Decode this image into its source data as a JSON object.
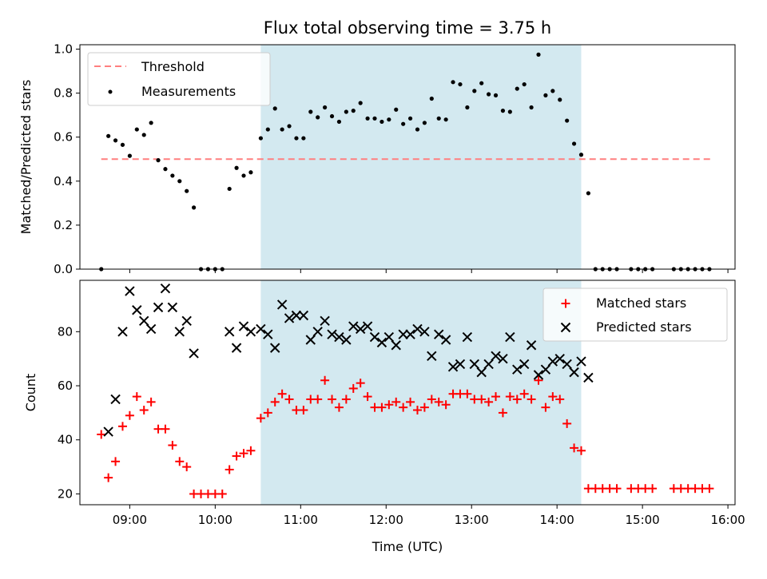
{
  "chart_data": [
    {
      "type": "scatter",
      "title": "Flux total observing time = 3.75 h",
      "xlabel": "",
      "ylabel": "Matched/Predicted stars",
      "xlim": [
        "08:25",
        "16:05"
      ],
      "ylim": [
        0,
        1.02
      ],
      "yticks": [
        "0.0",
        "0.2",
        "0.4",
        "0.6",
        "0.8",
        "1.0"
      ],
      "shaded_interval": [
        "10:32",
        "14:17"
      ],
      "shade_color": "#d3e9f0",
      "legend_position": "upper left",
      "series": [
        {
          "name": "Threshold",
          "kind": "dashed-line",
          "color": "#ff7f7f",
          "points": [
            [
              "08:40",
              0.5
            ],
            [
              "15:50",
              0.5
            ]
          ]
        },
        {
          "name": "Measurements",
          "kind": "dot",
          "color": "#000000",
          "points": [
            [
              "08:40",
              0.0
            ],
            [
              "08:45",
              0.605
            ],
            [
              "08:50",
              0.585
            ],
            [
              "08:55",
              0.565
            ],
            [
              "09:00",
              0.515
            ],
            [
              "09:05",
              0.635
            ],
            [
              "09:10",
              0.61
            ],
            [
              "09:15",
              0.665
            ],
            [
              "09:20",
              0.495
            ],
            [
              "09:25",
              0.455
            ],
            [
              "09:30",
              0.425
            ],
            [
              "09:35",
              0.4
            ],
            [
              "09:40",
              0.355
            ],
            [
              "09:45",
              0.28
            ],
            [
              "09:50",
              0.0
            ],
            [
              "09:55",
              0.0
            ],
            [
              "10:00",
              0.0
            ],
            [
              "10:05",
              0.0
            ],
            [
              "10:10",
              0.365
            ],
            [
              "10:15",
              0.46
            ],
            [
              "10:20",
              0.425
            ],
            [
              "10:25",
              0.44
            ],
            [
              "10:32",
              0.595
            ],
            [
              "10:37",
              0.635
            ],
            [
              "10:42",
              0.73
            ],
            [
              "10:47",
              0.635
            ],
            [
              "10:52",
              0.65
            ],
            [
              "10:57",
              0.595
            ],
            [
              "11:02",
              0.595
            ],
            [
              "11:07",
              0.715
            ],
            [
              "11:12",
              0.69
            ],
            [
              "11:17",
              0.735
            ],
            [
              "11:22",
              0.695
            ],
            [
              "11:27",
              0.67
            ],
            [
              "11:32",
              0.715
            ],
            [
              "11:37",
              0.72
            ],
            [
              "11:42",
              0.755
            ],
            [
              "11:47",
              0.685
            ],
            [
              "11:52",
              0.685
            ],
            [
              "11:57",
              0.67
            ],
            [
              "12:02",
              0.68
            ],
            [
              "12:07",
              0.725
            ],
            [
              "12:12",
              0.66
            ],
            [
              "12:17",
              0.685
            ],
            [
              "12:22",
              0.635
            ],
            [
              "12:27",
              0.665
            ],
            [
              "12:32",
              0.775
            ],
            [
              "12:37",
              0.685
            ],
            [
              "12:42",
              0.68
            ],
            [
              "12:47",
              0.85
            ],
            [
              "12:52",
              0.84
            ],
            [
              "12:57",
              0.735
            ],
            [
              "13:02",
              0.81
            ],
            [
              "13:07",
              0.845
            ],
            [
              "13:12",
              0.795
            ],
            [
              "13:17",
              0.79
            ],
            [
              "13:22",
              0.72
            ],
            [
              "13:27",
              0.715
            ],
            [
              "13:32",
              0.82
            ],
            [
              "13:37",
              0.84
            ],
            [
              "13:42",
              0.735
            ],
            [
              "13:47",
              0.975
            ],
            [
              "13:52",
              0.79
            ],
            [
              "13:57",
              0.81
            ],
            [
              "14:02",
              0.77
            ],
            [
              "14:07",
              0.675
            ],
            [
              "14:12",
              0.57
            ],
            [
              "14:17",
              0.52
            ],
            [
              "14:22",
              0.345
            ],
            [
              "14:27",
              0.0
            ],
            [
              "14:32",
              0.0
            ],
            [
              "14:37",
              0.0
            ],
            [
              "14:42",
              0.0
            ],
            [
              "14:52",
              0.0
            ],
            [
              "14:57",
              0.0
            ],
            [
              "15:02",
              0.0
            ],
            [
              "15:07",
              0.0
            ],
            [
              "15:22",
              0.0
            ],
            [
              "15:27",
              0.0
            ],
            [
              "15:32",
              0.0
            ],
            [
              "15:37",
              0.0
            ],
            [
              "15:42",
              0.0
            ],
            [
              "15:47",
              0.0
            ]
          ]
        }
      ]
    },
    {
      "type": "scatter",
      "title": "",
      "xlabel": "Time (UTC)",
      "ylabel": "Count",
      "xlim": [
        "08:25",
        "16:05"
      ],
      "ylim": [
        16,
        99
      ],
      "yticks": [
        "20",
        "40",
        "60",
        "80"
      ],
      "xticks": [
        "09:00",
        "10:00",
        "11:00",
        "12:00",
        "13:00",
        "14:00",
        "15:00",
        "16:00"
      ],
      "shaded_interval": [
        "10:32",
        "14:17"
      ],
      "shade_color": "#d3e9f0",
      "legend_position": "upper right",
      "series": [
        {
          "name": "Matched stars",
          "kind": "plus",
          "color": "#ff0000",
          "points": [
            [
              "08:40",
              42
            ],
            [
              "08:45",
              26
            ],
            [
              "08:50",
              32
            ],
            [
              "08:55",
              45
            ],
            [
              "09:00",
              49
            ],
            [
              "09:05",
              56
            ],
            [
              "09:10",
              51
            ],
            [
              "09:15",
              54
            ],
            [
              "09:20",
              44
            ],
            [
              "09:25",
              44
            ],
            [
              "09:30",
              38
            ],
            [
              "09:35",
              32
            ],
            [
              "09:40",
              30
            ],
            [
              "09:45",
              20
            ],
            [
              "09:50",
              20
            ],
            [
              "09:55",
              20
            ],
            [
              "10:00",
              20
            ],
            [
              "10:05",
              20
            ],
            [
              "10:10",
              29
            ],
            [
              "10:15",
              34
            ],
            [
              "10:20",
              35
            ],
            [
              "10:25",
              36
            ],
            [
              "10:32",
              48
            ],
            [
              "10:37",
              50
            ],
            [
              "10:42",
              54
            ],
            [
              "10:47",
              57
            ],
            [
              "10:52",
              55
            ],
            [
              "10:57",
              51
            ],
            [
              "11:02",
              51
            ],
            [
              "11:07",
              55
            ],
            [
              "11:12",
              55
            ],
            [
              "11:17",
              62
            ],
            [
              "11:22",
              55
            ],
            [
              "11:27",
              52
            ],
            [
              "11:32",
              55
            ],
            [
              "11:37",
              59
            ],
            [
              "11:42",
              61
            ],
            [
              "11:47",
              56
            ],
            [
              "11:52",
              52
            ],
            [
              "11:57",
              52
            ],
            [
              "12:02",
              53
            ],
            [
              "12:07",
              54
            ],
            [
              "12:12",
              52
            ],
            [
              "12:17",
              54
            ],
            [
              "12:22",
              51
            ],
            [
              "12:27",
              52
            ],
            [
              "12:32",
              55
            ],
            [
              "12:37",
              54
            ],
            [
              "12:42",
              53
            ],
            [
              "12:47",
              57
            ],
            [
              "12:52",
              57
            ],
            [
              "12:57",
              57
            ],
            [
              "13:02",
              55
            ],
            [
              "13:07",
              55
            ],
            [
              "13:12",
              54
            ],
            [
              "13:17",
              56
            ],
            [
              "13:22",
              50
            ],
            [
              "13:27",
              56
            ],
            [
              "13:32",
              55
            ],
            [
              "13:37",
              57
            ],
            [
              "13:42",
              55
            ],
            [
              "13:47",
              62
            ],
            [
              "13:52",
              52
            ],
            [
              "13:57",
              56
            ],
            [
              "14:02",
              55
            ],
            [
              "14:07",
              46
            ],
            [
              "14:12",
              37
            ],
            [
              "14:17",
              36
            ],
            [
              "14:22",
              22
            ],
            [
              "14:27",
              22
            ],
            [
              "14:32",
              22
            ],
            [
              "14:37",
              22
            ],
            [
              "14:42",
              22
            ],
            [
              "14:52",
              22
            ],
            [
              "14:57",
              22
            ],
            [
              "15:02",
              22
            ],
            [
              "15:07",
              22
            ],
            [
              "15:22",
              22
            ],
            [
              "15:27",
              22
            ],
            [
              "15:32",
              22
            ],
            [
              "15:37",
              22
            ],
            [
              "15:42",
              22
            ],
            [
              "15:47",
              22
            ]
          ]
        },
        {
          "name": "Predicted stars",
          "kind": "x",
          "color": "#000000",
          "points": [
            [
              "08:45",
              43
            ],
            [
              "08:50",
              55
            ],
            [
              "08:55",
              80
            ],
            [
              "09:00",
              95
            ],
            [
              "09:05",
              88
            ],
            [
              "09:10",
              84
            ],
            [
              "09:15",
              81
            ],
            [
              "09:20",
              89
            ],
            [
              "09:25",
              96
            ],
            [
              "09:30",
              89
            ],
            [
              "09:35",
              80
            ],
            [
              "09:40",
              84
            ],
            [
              "09:45",
              72
            ],
            [
              "10:10",
              80
            ],
            [
              "10:15",
              74
            ],
            [
              "10:20",
              82
            ],
            [
              "10:25",
              80
            ],
            [
              "10:32",
              81
            ],
            [
              "10:37",
              79
            ],
            [
              "10:42",
              74
            ],
            [
              "10:47",
              90
            ],
            [
              "10:52",
              85
            ],
            [
              "10:57",
              86
            ],
            [
              "11:02",
              86
            ],
            [
              "11:07",
              77
            ],
            [
              "11:12",
              80
            ],
            [
              "11:17",
              84
            ],
            [
              "11:22",
              79
            ],
            [
              "11:27",
              78
            ],
            [
              "11:32",
              77
            ],
            [
              "11:37",
              82
            ],
            [
              "11:42",
              81
            ],
            [
              "11:47",
              82
            ],
            [
              "11:52",
              78
            ],
            [
              "11:57",
              76
            ],
            [
              "12:02",
              78
            ],
            [
              "12:07",
              75
            ],
            [
              "12:12",
              79
            ],
            [
              "12:17",
              79
            ],
            [
              "12:22",
              81
            ],
            [
              "12:27",
              80
            ],
            [
              "12:32",
              71
            ],
            [
              "12:37",
              79
            ],
            [
              "12:42",
              77
            ],
            [
              "12:47",
              67
            ],
            [
              "12:52",
              68
            ],
            [
              "12:57",
              78
            ],
            [
              "13:02",
              68
            ],
            [
              "13:07",
              65
            ],
            [
              "13:12",
              68
            ],
            [
              "13:17",
              71
            ],
            [
              "13:22",
              70
            ],
            [
              "13:27",
              78
            ],
            [
              "13:32",
              66
            ],
            [
              "13:37",
              68
            ],
            [
              "13:42",
              75
            ],
            [
              "13:47",
              64
            ],
            [
              "13:52",
              66
            ],
            [
              "13:57",
              69
            ],
            [
              "14:02",
              70
            ],
            [
              "14:07",
              68
            ],
            [
              "14:12",
              65
            ],
            [
              "14:17",
              69
            ],
            [
              "14:22",
              63
            ]
          ]
        }
      ]
    }
  ]
}
